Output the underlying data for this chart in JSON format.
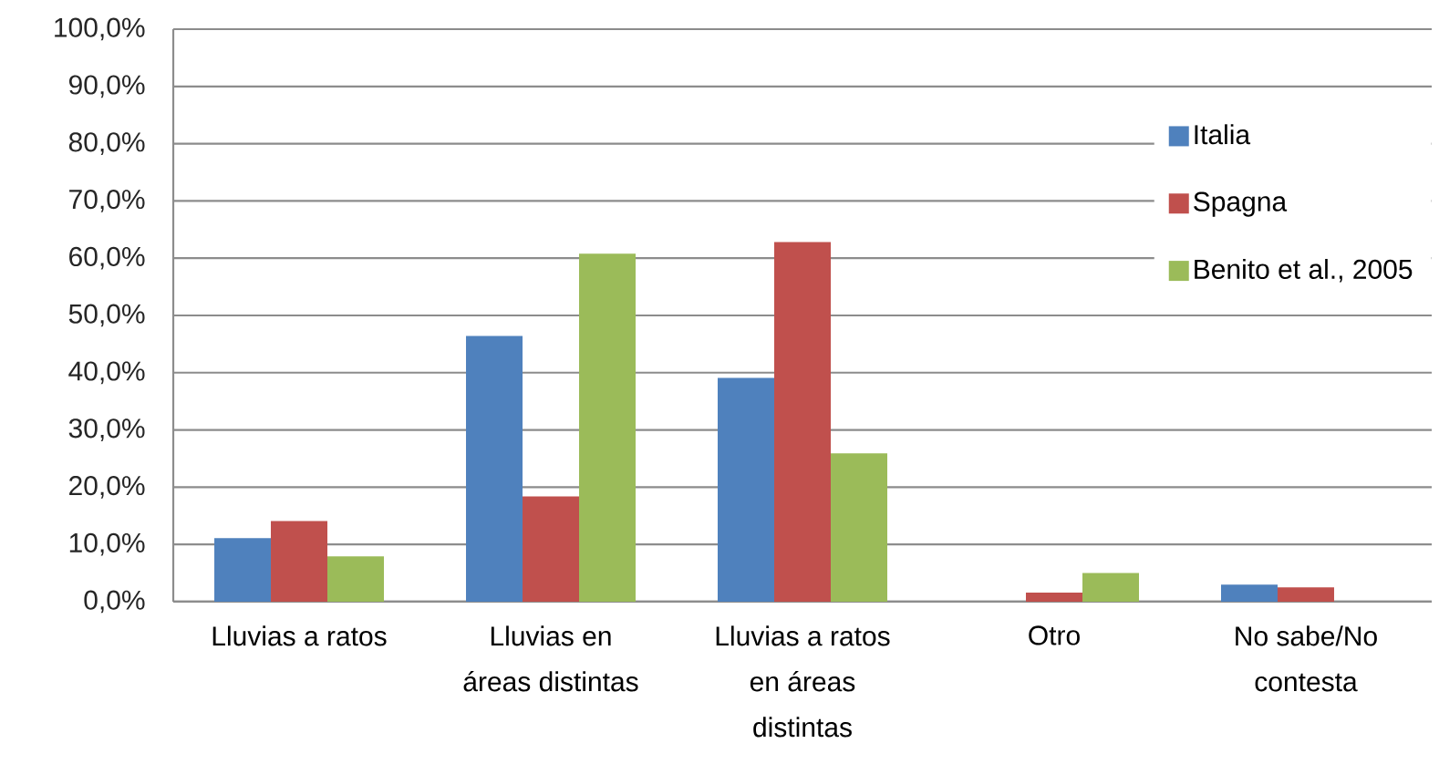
{
  "chart_data": {
    "type": "bar",
    "categories": [
      "Lluvias a ratos",
      "Lluvias en áreas distintas",
      "Lluvias a ratos en áreas distintas",
      "Otro",
      "No sabe/No contesta"
    ],
    "series": [
      {
        "name": "Italia",
        "color": "#4f81bd",
        "values": [
          11.1,
          46.4,
          39.1,
          null,
          3.0
        ]
      },
      {
        "name": "Spagna",
        "color": "#c0504d",
        "values": [
          14.1,
          18.4,
          62.8,
          1.6,
          2.5
        ]
      },
      {
        "name": "Benito et al., 2005",
        "color": "#9bbb59",
        "values": [
          7.9,
          60.8,
          25.9,
          5.0,
          null
        ]
      }
    ],
    "ylim": [
      0,
      100
    ],
    "yticks": [
      {
        "value": 0,
        "label": "0,0%"
      },
      {
        "value": 10,
        "label": "10,0%"
      },
      {
        "value": 20,
        "label": "20,0%"
      },
      {
        "value": 30,
        "label": "30,0%"
      },
      {
        "value": 40,
        "label": "40,0%"
      },
      {
        "value": 50,
        "label": "50,0%"
      },
      {
        "value": 60,
        "label": "60,0%"
      },
      {
        "value": 70,
        "label": "70,0%"
      },
      {
        "value": 80,
        "label": "80,0%"
      },
      {
        "value": 90,
        "label": "90,0%"
      },
      {
        "value": 100,
        "label": "100,0%"
      }
    ],
    "grid": "y",
    "legend": "top right"
  }
}
